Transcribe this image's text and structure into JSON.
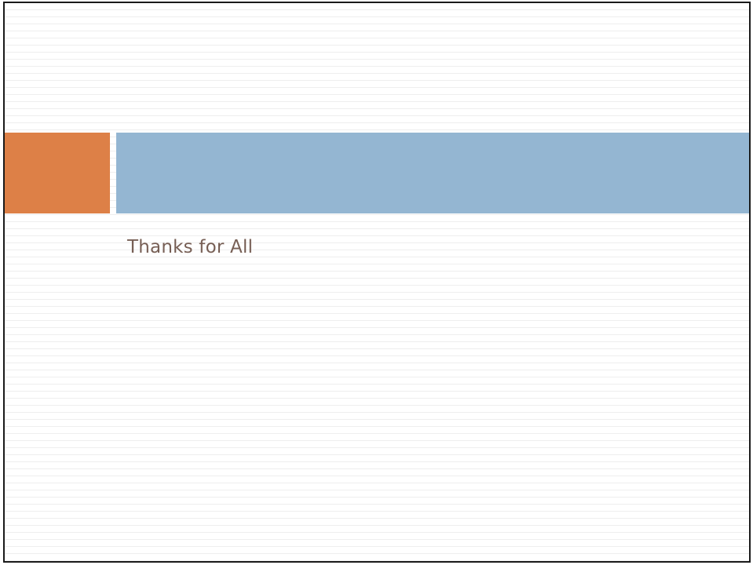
{
  "slide": {
    "subtitle": "Thanks for All"
  },
  "colors": {
    "accent_block": "#dd8047",
    "title_band": "#94b6d2",
    "subtitle_text": "#775f55",
    "border": "#1a1a1a"
  }
}
